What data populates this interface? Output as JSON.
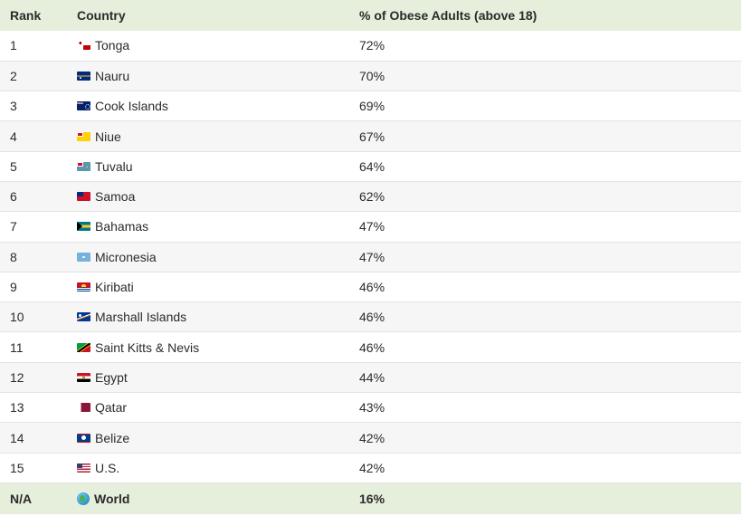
{
  "table": {
    "headers": {
      "rank": "Rank",
      "country": "Country",
      "value": "% of Obese Adults (above 18)"
    },
    "rows": [
      {
        "rank": "1",
        "country": "Tonga",
        "value": "72%",
        "flag": "tonga-flag-icon"
      },
      {
        "rank": "2",
        "country": "Nauru",
        "value": "70%",
        "flag": "nauru-flag-icon"
      },
      {
        "rank": "3",
        "country": "Cook Islands",
        "value": "69%",
        "flag": "cook-islands-flag-icon"
      },
      {
        "rank": "4",
        "country": "Niue",
        "value": "67%",
        "flag": "niue-flag-icon"
      },
      {
        "rank": "5",
        "country": "Tuvalu",
        "value": "64%",
        "flag": "tuvalu-flag-icon"
      },
      {
        "rank": "6",
        "country": "Samoa",
        "value": "62%",
        "flag": "samoa-flag-icon"
      },
      {
        "rank": "7",
        "country": "Bahamas",
        "value": "47%",
        "flag": "bahamas-flag-icon"
      },
      {
        "rank": "8",
        "country": "Micronesia",
        "value": "47%",
        "flag": "micronesia-flag-icon"
      },
      {
        "rank": "9",
        "country": "Kiribati",
        "value": "46%",
        "flag": "kiribati-flag-icon"
      },
      {
        "rank": "10",
        "country": "Marshall Islands",
        "value": "46%",
        "flag": "marshall-islands-flag-icon"
      },
      {
        "rank": "11",
        "country": "Saint Kitts & Nevis",
        "value": "46%",
        "flag": "saint-kitts-nevis-flag-icon"
      },
      {
        "rank": "12",
        "country": "Egypt",
        "value": "44%",
        "flag": "egypt-flag-icon"
      },
      {
        "rank": "13",
        "country": "Qatar",
        "value": "43%",
        "flag": "qatar-flag-icon"
      },
      {
        "rank": "14",
        "country": "Belize",
        "value": "42%",
        "flag": "belize-flag-icon"
      },
      {
        "rank": "15",
        "country": "U.S.",
        "value": "42%",
        "flag": "us-flag-icon"
      }
    ],
    "footer": {
      "rank": "N/A",
      "country": "World",
      "value": "16%",
      "icon": "globe-icon"
    }
  },
  "colors": {
    "header_bg": "#e6efdc",
    "row_alt_bg": "#f6f6f6",
    "border": "#e3e3e3"
  }
}
